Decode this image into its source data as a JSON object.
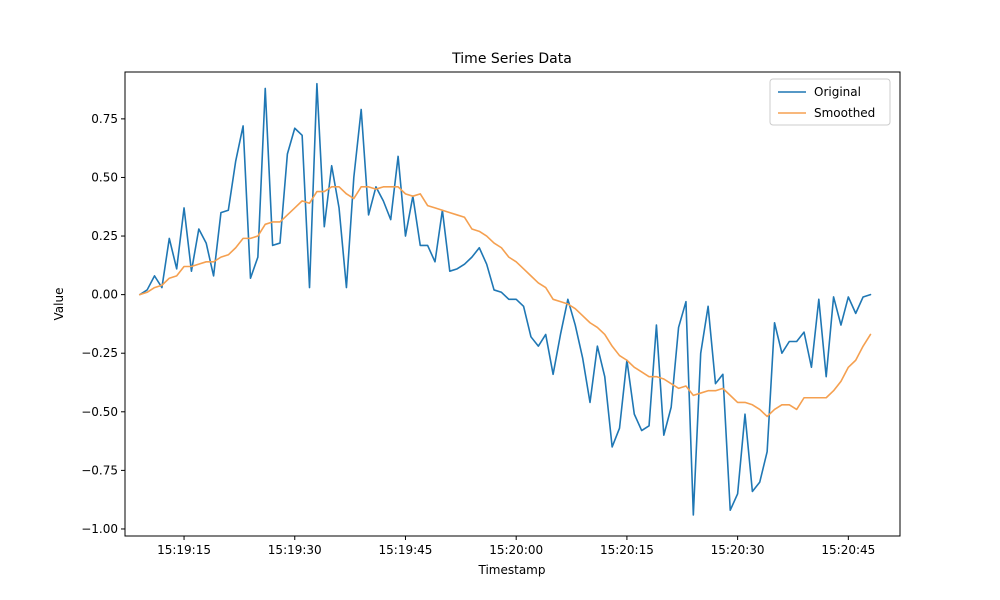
{
  "chart_data": {
    "type": "line",
    "title": "Time Series Data",
    "xlabel": "Timestamp",
    "ylabel": "Value",
    "x_start": "15:19:09",
    "x_step_seconds": 1,
    "xlim": [
      "15:19:07",
      "15:20:52"
    ],
    "ylim": [
      -1.03,
      0.95
    ],
    "x_ticks": [
      "15:19:15",
      "15:19:30",
      "15:19:45",
      "15:20:00",
      "15:20:15",
      "15:20:30",
      "15:20:45"
    ],
    "y_ticks": [
      -1.0,
      -0.75,
      -0.5,
      -0.25,
      0.0,
      0.25,
      0.5,
      0.75
    ],
    "y_tick_labels": [
      "−1.00",
      "−0.75",
      "−0.50",
      "−0.25",
      "0.00",
      "0.25",
      "0.50",
      "0.75"
    ],
    "grid": false,
    "legend": "top-right",
    "series": [
      {
        "name": "Original",
        "color": "#1f77b4",
        "values": [
          0.0,
          0.02,
          0.08,
          0.03,
          0.24,
          0.11,
          0.37,
          0.1,
          0.28,
          0.22,
          0.08,
          0.35,
          0.36,
          0.57,
          0.72,
          0.07,
          0.16,
          0.88,
          0.21,
          0.22,
          0.6,
          0.71,
          0.68,
          0.03,
          0.9,
          0.29,
          0.55,
          0.37,
          0.03,
          0.5,
          0.79,
          0.34,
          0.46,
          0.4,
          0.32,
          0.59,
          0.25,
          0.42,
          0.21,
          0.21,
          0.14,
          0.36,
          0.1,
          0.11,
          0.13,
          0.16,
          0.2,
          0.13,
          0.02,
          0.01,
          -0.02,
          -0.02,
          -0.05,
          -0.18,
          -0.22,
          -0.17,
          -0.34,
          -0.17,
          -0.02,
          -0.13,
          -0.27,
          -0.46,
          -0.22,
          -0.35,
          -0.65,
          -0.57,
          -0.28,
          -0.51,
          -0.58,
          -0.56,
          -0.13,
          -0.6,
          -0.48,
          -0.14,
          -0.03,
          -0.94,
          -0.25,
          -0.05,
          -0.38,
          -0.34,
          -0.92,
          -0.85,
          -0.51,
          -0.84,
          -0.8,
          -0.67,
          -0.12,
          -0.25,
          -0.2,
          -0.2,
          -0.16,
          -0.31,
          -0.02,
          -0.35,
          -0.01,
          -0.13,
          -0.01,
          -0.08,
          -0.01,
          0.0
        ]
      },
      {
        "name": "Smoothed",
        "color": "#f5a050",
        "values": [
          0.0,
          0.01,
          0.03,
          0.04,
          0.07,
          0.08,
          0.12,
          0.12,
          0.13,
          0.14,
          0.14,
          0.16,
          0.17,
          0.2,
          0.24,
          0.24,
          0.25,
          0.3,
          0.31,
          0.31,
          0.34,
          0.37,
          0.4,
          0.39,
          0.44,
          0.44,
          0.46,
          0.46,
          0.43,
          0.41,
          0.46,
          0.46,
          0.45,
          0.46,
          0.46,
          0.46,
          0.43,
          0.42,
          0.43,
          0.38,
          0.37,
          0.36,
          0.35,
          0.34,
          0.33,
          0.28,
          0.27,
          0.25,
          0.22,
          0.2,
          0.16,
          0.14,
          0.11,
          0.08,
          0.05,
          0.03,
          -0.02,
          -0.03,
          -0.04,
          -0.06,
          -0.09,
          -0.12,
          -0.14,
          -0.17,
          -0.22,
          -0.26,
          -0.28,
          -0.31,
          -0.33,
          -0.35,
          -0.35,
          -0.36,
          -0.38,
          -0.4,
          -0.39,
          -0.43,
          -0.42,
          -0.41,
          -0.41,
          -0.4,
          -0.43,
          -0.46,
          -0.46,
          -0.47,
          -0.49,
          -0.52,
          -0.49,
          -0.47,
          -0.47,
          -0.49,
          -0.44,
          -0.44,
          -0.44,
          -0.44,
          -0.41,
          -0.37,
          -0.31,
          -0.28,
          -0.22,
          -0.17
        ]
      }
    ]
  }
}
